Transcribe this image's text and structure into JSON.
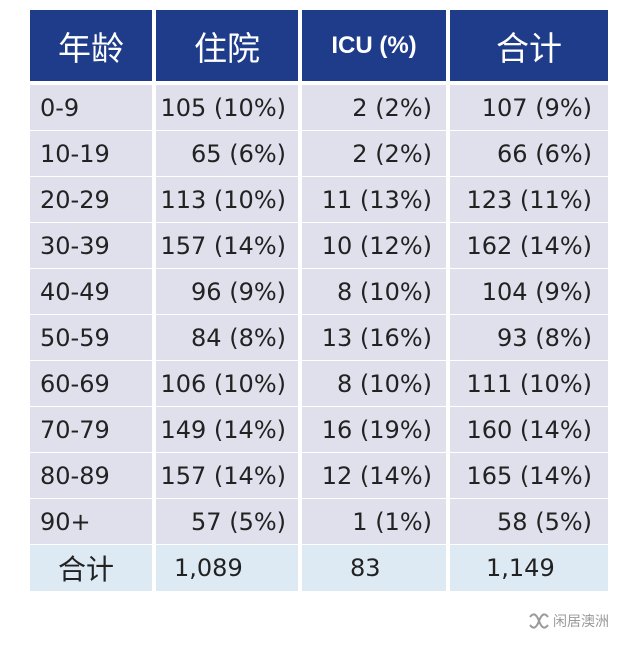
{
  "table": {
    "headers": [
      "年龄",
      "住院",
      "ICU (%)",
      "合计"
    ],
    "rows": [
      [
        "0-9",
        "105 (10%)",
        "2 (2%)",
        "107 (9%)"
      ],
      [
        "10-19",
        "65 (6%)",
        "2 (2%)",
        "66 (6%)"
      ],
      [
        "20-29",
        "113 (10%)",
        "11 (13%)",
        "123 (11%)"
      ],
      [
        "30-39",
        "157 (14%)",
        "10 (12%)",
        "162 (14%)"
      ],
      [
        "40-49",
        "96 (9%)",
        "8 (10%)",
        "104 (9%)"
      ],
      [
        "50-59",
        "84 (8%)",
        "13 (16%)",
        "93 (8%)"
      ],
      [
        "60-69",
        "106 (10%)",
        "8 (10%)",
        "111 (10%)"
      ],
      [
        "70-79",
        "149 (14%)",
        "16 (19%)",
        "160 (14%)"
      ],
      [
        "80-89",
        "157 (14%)",
        "12 (14%)",
        "165 (14%)"
      ],
      [
        "90+",
        "57 (5%)",
        "1 (1%)",
        "58 (5%)"
      ]
    ],
    "total": [
      "合计",
      "1,089",
      "83",
      "1,149"
    ]
  },
  "colors": {
    "header_bg": "#1f3c8a",
    "row_bg": "#dfe0ec",
    "total_bg": "#dde9f3"
  },
  "watermark": {
    "text": "闲居澳洲",
    "icon": "wechat-channel-icon"
  }
}
